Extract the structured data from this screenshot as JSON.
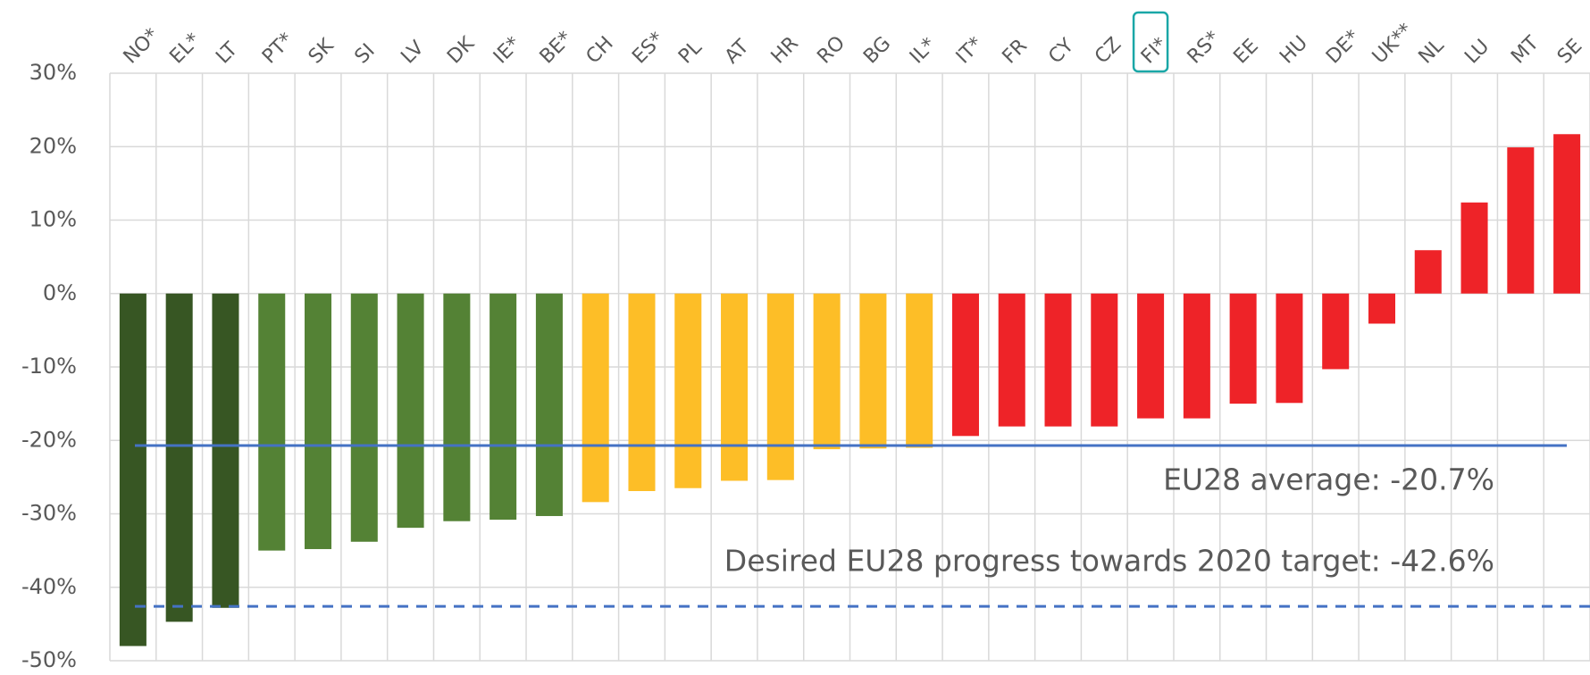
{
  "chart_data": {
    "type": "bar",
    "categories": [
      "NO*",
      "EL*",
      "LT",
      "PT*",
      "SK",
      "SI",
      "LV",
      "DK",
      "IE*",
      "BE*",
      "CH",
      "ES*",
      "PL",
      "AT",
      "HR",
      "RO",
      "BG",
      "IL*",
      "IT*",
      "FR",
      "CY",
      "CZ",
      "FI*",
      "RS*",
      "EE",
      "HU",
      "DE*",
      "UK**",
      "NL",
      "LU",
      "MT",
      "SE"
    ],
    "values": [
      -48.0,
      -44.7,
      -42.8,
      -35.0,
      -34.8,
      -33.8,
      -31.9,
      -31.0,
      -30.8,
      -30.3,
      -28.4,
      -26.9,
      -26.5,
      -25.5,
      -25.4,
      -21.2,
      -21.1,
      -21.0,
      -19.4,
      -18.1,
      -18.1,
      -18.1,
      -17.0,
      -17.0,
      -15.0,
      -14.9,
      -10.3,
      -4.1,
      5.9,
      12.4,
      19.9,
      21.7
    ],
    "colors": [
      "#375623",
      "#375623",
      "#375623",
      "#548235",
      "#548235",
      "#548235",
      "#548235",
      "#548235",
      "#548235",
      "#548235",
      "#fdbe27",
      "#fdbe27",
      "#fdbe27",
      "#fdbe27",
      "#fdbe27",
      "#fdbe27",
      "#fdbe27",
      "#fdbe27",
      "#ee2328",
      "#ee2328",
      "#ee2328",
      "#ee2328",
      "#ee2328",
      "#ee2328",
      "#ee2328",
      "#ee2328",
      "#ee2328",
      "#ee2328",
      "#ee2328",
      "#ee2328",
      "#ee2328",
      "#ee2328"
    ],
    "ylim": [
      -50,
      30
    ],
    "yticks": [
      {
        "value": -50,
        "label": "-50%"
      },
      {
        "value": -40,
        "label": "-40%"
      },
      {
        "value": -30,
        "label": "-30%"
      },
      {
        "value": -20,
        "label": "-20%"
      },
      {
        "value": -10,
        "label": "-10%"
      },
      {
        "value": 0,
        "label": "0%"
      },
      {
        "value": 10,
        "label": "10%"
      },
      {
        "value": 20,
        "label": "20%"
      },
      {
        "value": 30,
        "label": "30%"
      }
    ],
    "grid": true,
    "highlight_index": 22,
    "reference_lines": [
      {
        "value": -20.7,
        "label": "EU28 average: -20.7%",
        "color": "#4472c4",
        "style": "solid"
      },
      {
        "value": -42.6,
        "label": "Desired EU28 progress towards 2020 target: -42.6%",
        "color": "#4472c4",
        "style": "dashed"
      }
    ]
  }
}
